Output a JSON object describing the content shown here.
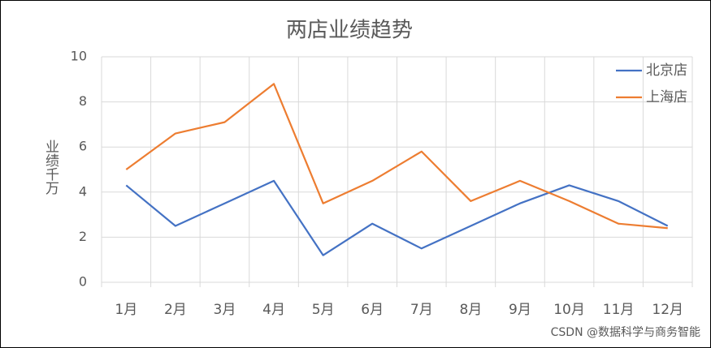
{
  "chart_data": {
    "type": "line",
    "title": "两店业绩趋势",
    "y_label": "业绩千万",
    "categories": [
      "1月",
      "2月",
      "3月",
      "4月",
      "5月",
      "6月",
      "7月",
      "8月",
      "9月",
      "10月",
      "11月",
      "12月"
    ],
    "series": [
      {
        "name": "北京店",
        "color": "#4472c4",
        "values": [
          4.3,
          2.5,
          3.5,
          4.5,
          1.2,
          2.6,
          1.5,
          2.5,
          3.5,
          4.3,
          3.6,
          2.5
        ]
      },
      {
        "name": "上海店",
        "color": "#ed7d31",
        "values": [
          5.0,
          6.6,
          7.1,
          8.8,
          3.5,
          4.5,
          5.8,
          3.6,
          4.5,
          3.6,
          2.6,
          2.4
        ]
      }
    ],
    "ylim": [
      0,
      10
    ],
    "yticks": [
      0,
      2,
      4,
      6,
      8,
      10
    ],
    "grid": true,
    "legend": "top-right",
    "watermark": "CSDN @数据科学与商务智能"
  }
}
